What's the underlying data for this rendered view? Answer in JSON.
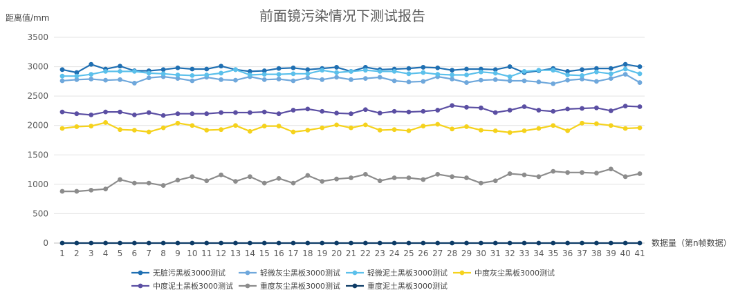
{
  "chart_data": {
    "type": "line",
    "title": "前面镜污染情况下测试报告",
    "ylabel": "距离值/mm",
    "xlabel": "数据量（第n帧数据）",
    "ylim": [
      0,
      3500
    ],
    "yticks": [
      0,
      500,
      1000,
      1500,
      2000,
      2500,
      3000,
      3500
    ],
    "x": [
      1,
      2,
      3,
      4,
      5,
      6,
      7,
      8,
      9,
      10,
      11,
      12,
      13,
      14,
      15,
      16,
      17,
      18,
      19,
      20,
      21,
      22,
      23,
      24,
      25,
      26,
      27,
      28,
      29,
      30,
      31,
      32,
      33,
      34,
      35,
      36,
      37,
      38,
      39,
      40,
      41
    ],
    "grid": "horizontal",
    "legend_position": "bottom",
    "series": [
      {
        "name": "无脏污黑板3000测试",
        "color": "#1f6fb2",
        "values": [
          2950,
          2900,
          3040,
          2960,
          3010,
          2930,
          2930,
          2950,
          2980,
          2960,
          2960,
          3010,
          2950,
          2920,
          2930,
          2970,
          2980,
          2950,
          2970,
          2990,
          2920,
          2990,
          2950,
          2960,
          2970,
          2990,
          2980,
          2940,
          2960,
          2960,
          2950,
          3000,
          2900,
          2930,
          2970,
          2920,
          2950,
          2970,
          2970,
          3040,
          3000
        ]
      },
      {
        "name": "轻微灰尘黑板3000测试",
        "color": "#6fa8dc",
        "values": [
          2760,
          2780,
          2790,
          2770,
          2780,
          2720,
          2810,
          2830,
          2800,
          2760,
          2820,
          2780,
          2770,
          2830,
          2780,
          2790,
          2760,
          2810,
          2780,
          2820,
          2780,
          2800,
          2820,
          2760,
          2740,
          2750,
          2830,
          2790,
          2730,
          2770,
          2780,
          2760,
          2760,
          2740,
          2710,
          2770,
          2790,
          2750,
          2800,
          2870,
          2730
        ]
      },
      {
        "name": "轻微泥土黑板3000测试",
        "color": "#5bc0eb",
        "values": [
          2840,
          2840,
          2870,
          2920,
          2920,
          2920,
          2890,
          2880,
          2860,
          2850,
          2860,
          2890,
          2950,
          2860,
          2870,
          2870,
          2880,
          2880,
          2940,
          2900,
          2920,
          2940,
          2920,
          2920,
          2880,
          2900,
          2870,
          2860,
          2860,
          2910,
          2890,
          2830,
          2920,
          2940,
          2940,
          2860,
          2850,
          2910,
          2880,
          2960,
          2880
        ]
      },
      {
        "name": "中度灰尘黑板3000测试",
        "color": "#f5d21c",
        "values": [
          1950,
          1980,
          1990,
          2050,
          1930,
          1920,
          1890,
          1960,
          2040,
          2000,
          1920,
          1930,
          2000,
          1900,
          1990,
          1990,
          1890,
          1920,
          1960,
          2010,
          1960,
          2010,
          1920,
          1930,
          1910,
          1990,
          2020,
          1940,
          1980,
          1920,
          1910,
          1880,
          1910,
          1950,
          2000,
          1910,
          2040,
          2030,
          2000,
          1950,
          1960
        ]
      },
      {
        "name": "中度泥土黑板3000测试",
        "color": "#5b4fa3",
        "values": [
          2230,
          2200,
          2180,
          2230,
          2230,
          2180,
          2220,
          2170,
          2200,
          2200,
          2200,
          2220,
          2220,
          2220,
          2230,
          2200,
          2260,
          2280,
          2240,
          2210,
          2200,
          2270,
          2210,
          2240,
          2230,
          2240,
          2260,
          2340,
          2310,
          2300,
          2220,
          2260,
          2320,
          2260,
          2240,
          2280,
          2290,
          2300,
          2250,
          2330,
          2320
        ]
      },
      {
        "name": "重度灰尘黑板3000测试",
        "color": "#8c8c8c",
        "values": [
          880,
          880,
          900,
          920,
          1080,
          1020,
          1020,
          980,
          1070,
          1130,
          1060,
          1160,
          1050,
          1130,
          1020,
          1100,
          1020,
          1150,
          1050,
          1090,
          1110,
          1170,
          1060,
          1110,
          1110,
          1080,
          1170,
          1130,
          1110,
          1020,
          1060,
          1180,
          1160,
          1130,
          1220,
          1200,
          1200,
          1190,
          1260,
          1130,
          1180
        ]
      },
      {
        "name": "重度泥土黑板3000测试",
        "color": "#0d3b66",
        "values": [
          0,
          0,
          0,
          0,
          0,
          0,
          0,
          0,
          0,
          0,
          0,
          0,
          0,
          0,
          0,
          0,
          0,
          0,
          0,
          0,
          0,
          0,
          0,
          0,
          0,
          0,
          0,
          0,
          0,
          0,
          0,
          0,
          0,
          0,
          0,
          0,
          0,
          0,
          0,
          0,
          0
        ]
      }
    ]
  }
}
